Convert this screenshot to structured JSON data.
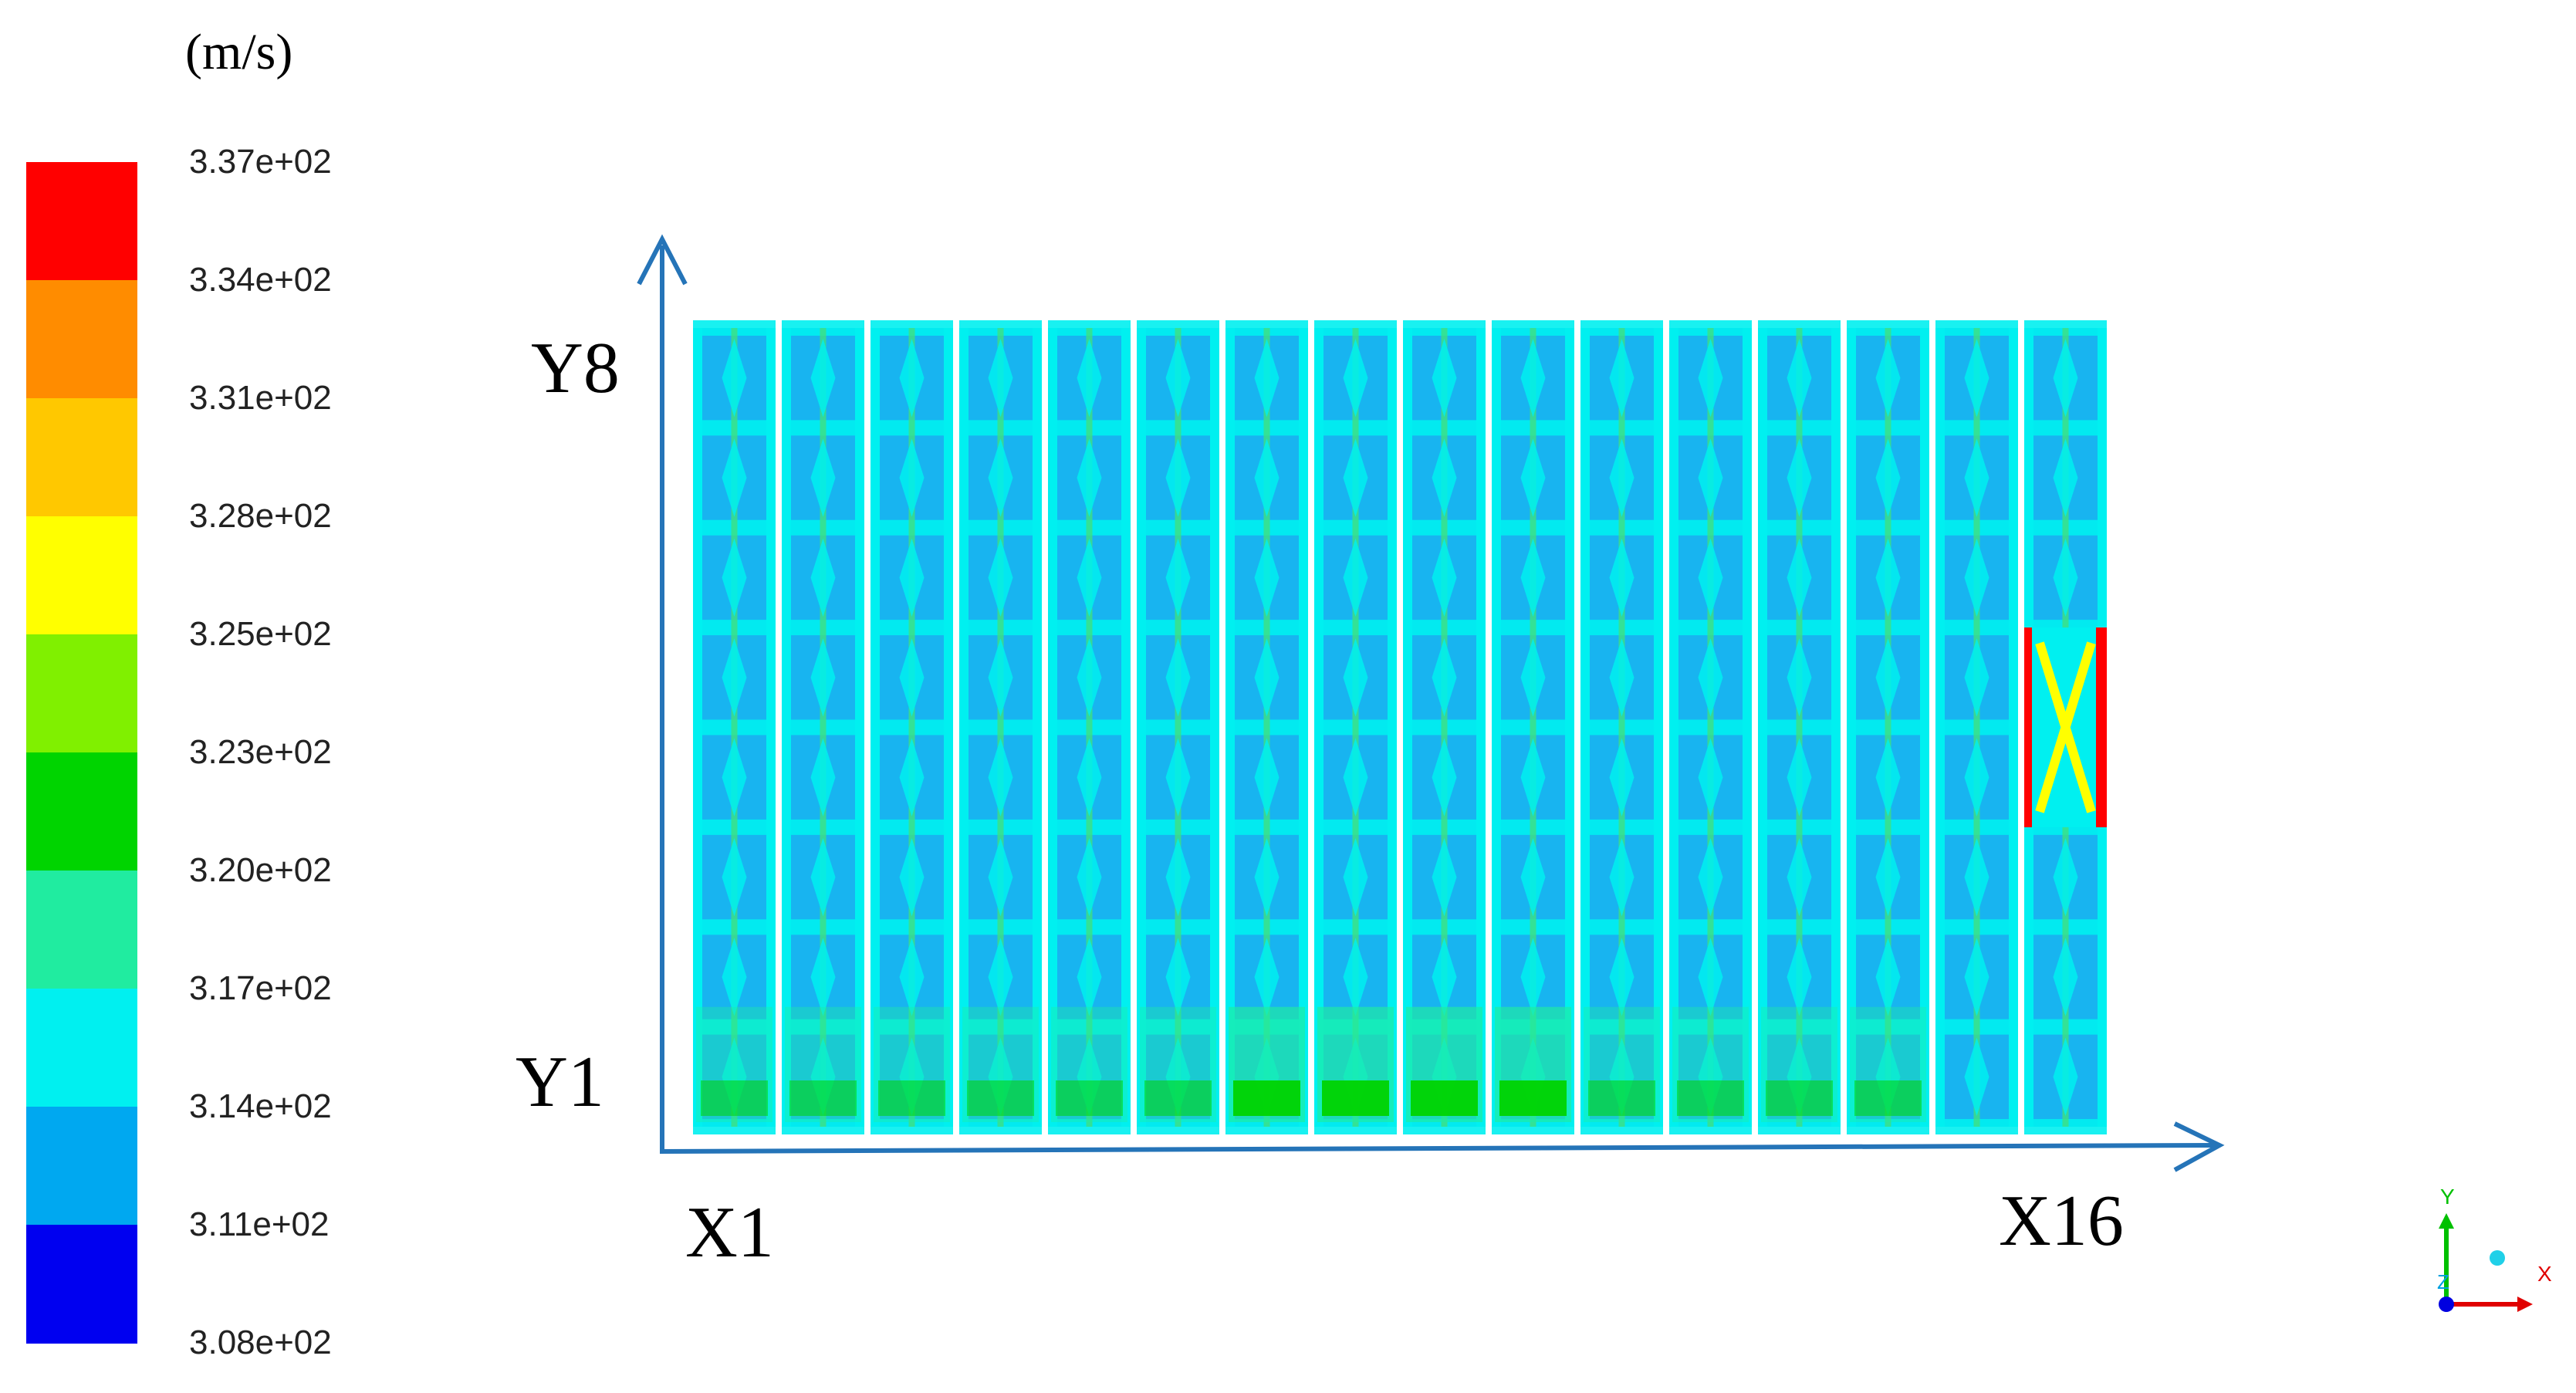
{
  "unit": "(m/s)",
  "legend": {
    "ticks": [
      "3.37e+02",
      "3.34e+02",
      "3.31e+02",
      "3.28e+02",
      "3.25e+02",
      "3.23e+02",
      "3.20e+02",
      "3.17e+02",
      "3.14e+02",
      "3.11e+02",
      "3.08e+02"
    ],
    "colors": [
      "#ff0000",
      "#ff8c00",
      "#ffc800",
      "#ffff00",
      "#80f000",
      "#00d400",
      "#20eca0",
      "#00f0f0",
      "#00a8f0",
      "#0000f0"
    ]
  },
  "axes": {
    "y_top": "Y8",
    "y_bottom": "Y1",
    "x_left": "X1",
    "x_right": "X16"
  },
  "field": {
    "columns": 16,
    "rows": 8,
    "base_color": "#18b4f0",
    "hot_cell": {
      "column": 16,
      "rows": [
        4,
        5
      ],
      "colors": [
        "#ff0000",
        "#ffff00",
        "#00f0f0"
      ]
    }
  },
  "triad": {
    "x": "X",
    "y": "Y",
    "z": "Z"
  }
}
